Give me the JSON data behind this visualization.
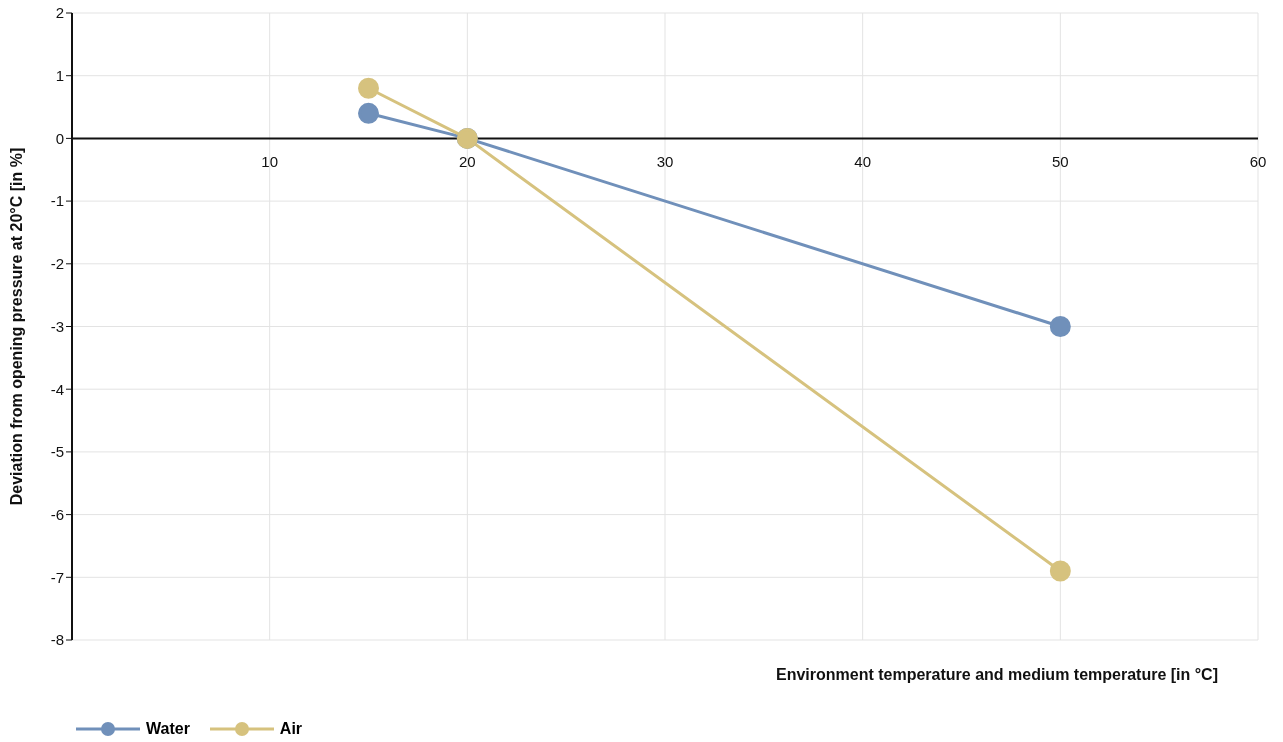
{
  "chart_data": {
    "type": "line",
    "xlabel": "Environment temperature and medium temperature [in °C]",
    "ylabel": "Deviation from opening pressure at 20°C [in %]",
    "x": [
      15,
      20,
      50
    ],
    "series": [
      {
        "name": "Water",
        "color": "#7090ba",
        "values": [
          0.4,
          0,
          -3
        ]
      },
      {
        "name": "Air",
        "color": "#d6c27e",
        "values": [
          0.8,
          0,
          -6.9
        ]
      }
    ],
    "xlim": [
      0,
      60
    ],
    "xticks": [
      10,
      20,
      30,
      40,
      50,
      60
    ],
    "ylim": [
      -8,
      2
    ],
    "yticks": [
      -8,
      -7,
      -6,
      -5,
      -4,
      -3,
      -2,
      -1,
      0,
      1,
      2
    ],
    "grid": true,
    "legend": "bottom left",
    "marker": "circle",
    "line_style": "solid"
  }
}
